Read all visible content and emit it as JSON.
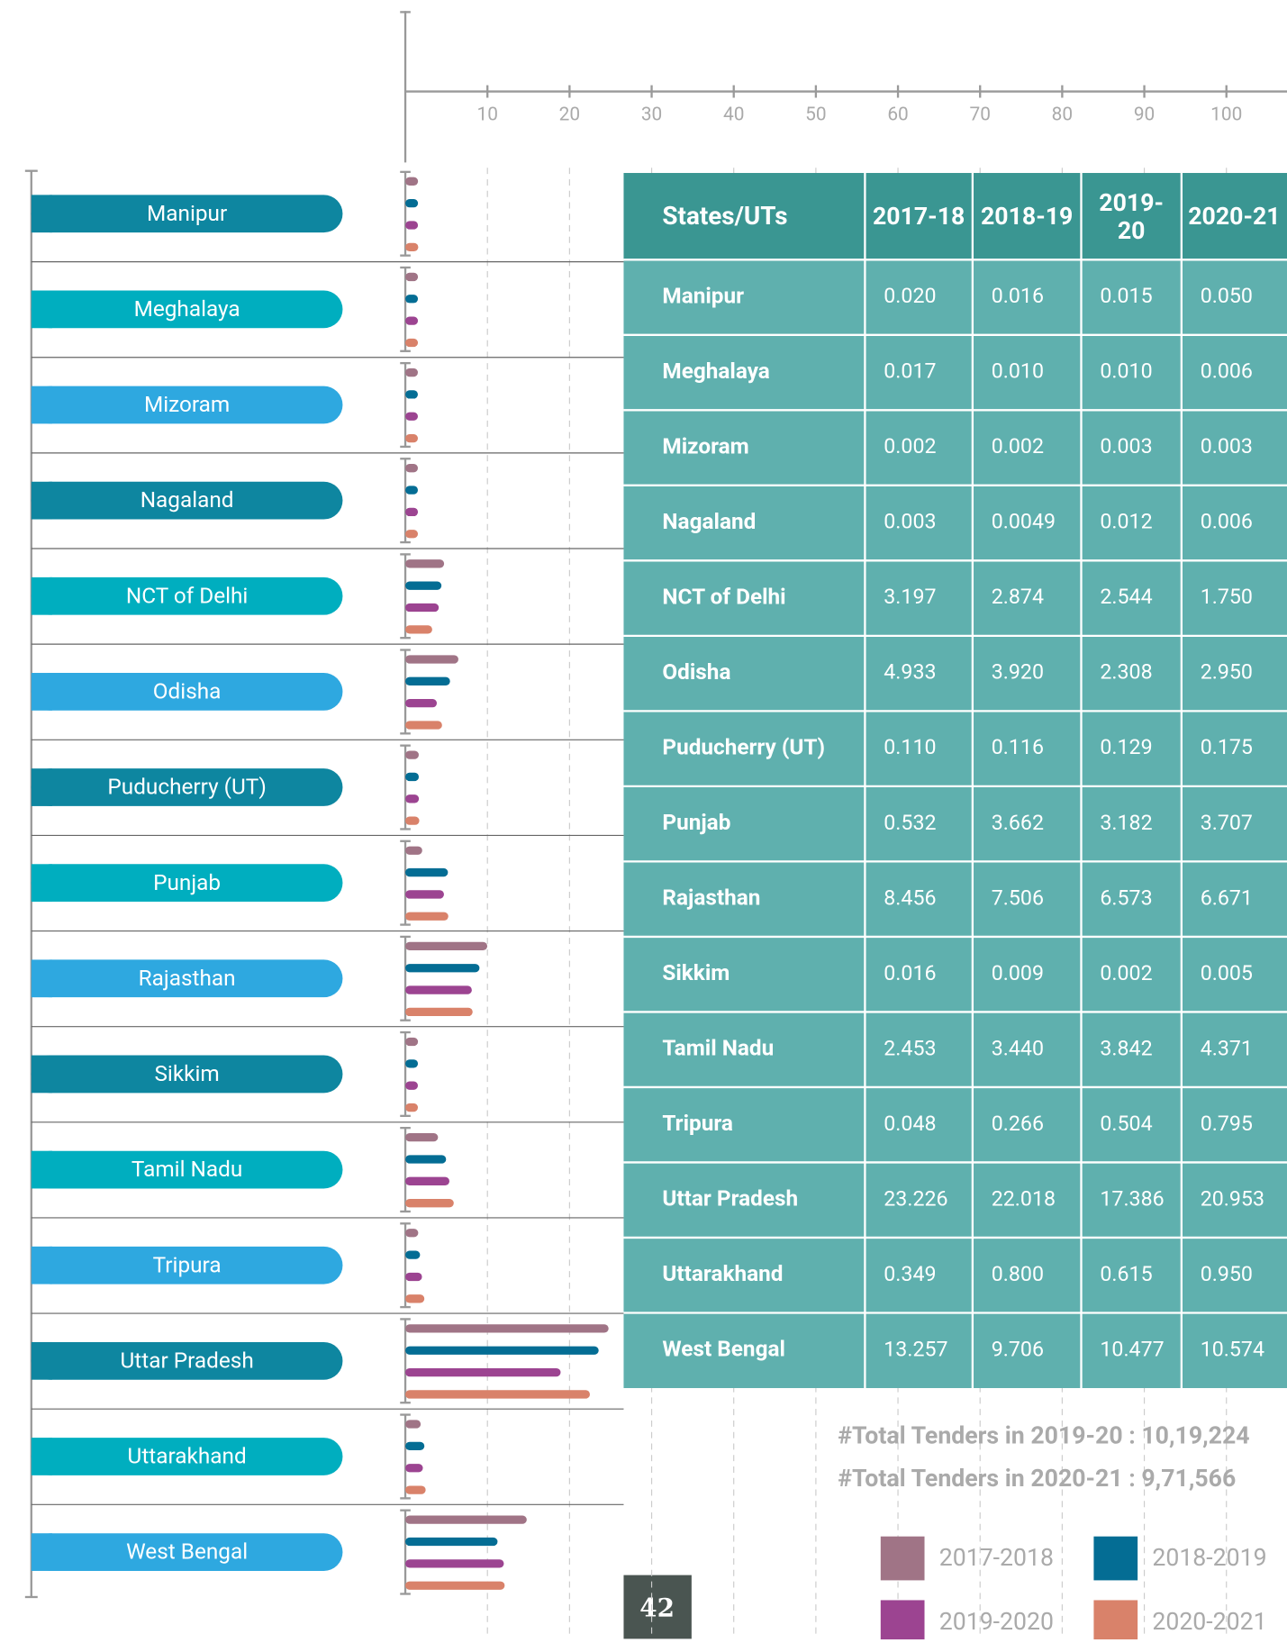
{
  "chart_data": {
    "type": "bar",
    "orientation": "horizontal",
    "categories": [
      "Manipur",
      "Meghalaya",
      "Mizoram",
      "Nagaland",
      "NCT of Delhi",
      "Odisha",
      "Puducherry (UT)",
      "Punjab",
      "Rajasthan",
      "Sikkim",
      "Tamil Nadu",
      "Tripura",
      "Uttar Pradesh",
      "Uttarakhand",
      "West Bengal"
    ],
    "series": [
      {
        "name": "2017-2018",
        "color": "#a07486",
        "values": [
          0.02,
          0.017,
          0.002,
          0.003,
          3.197,
          4.933,
          0.11,
          0.532,
          8.456,
          0.016,
          2.453,
          0.048,
          23.226,
          0.349,
          13.257
        ]
      },
      {
        "name": "2018-2019",
        "color": "#046d94",
        "values": [
          0.016,
          0.01,
          0.002,
          0.0049,
          2.874,
          3.92,
          0.116,
          3.662,
          7.506,
          0.009,
          3.44,
          0.266,
          22.018,
          0.8,
          9.706
        ]
      },
      {
        "name": "2019-2020",
        "color": "#9c4491",
        "values": [
          0.015,
          0.01,
          0.003,
          0.012,
          2.544,
          2.308,
          0.129,
          3.182,
          6.573,
          0.002,
          3.842,
          0.504,
          17.386,
          0.615,
          10.477
        ]
      },
      {
        "name": "2020-2021",
        "color": "#d9826a",
        "values": [
          0.05,
          0.006,
          0.003,
          0.006,
          1.75,
          2.95,
          0.175,
          3.707,
          6.671,
          0.005,
          4.371,
          0.795,
          20.953,
          0.95,
          10.574
        ]
      }
    ],
    "xlim": [
      0,
      107
    ],
    "xticks": [
      10,
      20,
      30,
      40,
      50,
      60,
      70,
      80,
      90,
      100
    ],
    "grid": true
  },
  "table": {
    "header": [
      "States/UTs",
      "2017-18",
      "2018-19",
      "2019-20",
      "2020-21"
    ],
    "rows": [
      [
        "Manipur",
        "0.020",
        "0.016",
        "0.015",
        "0.050"
      ],
      [
        "Meghalaya",
        "0.017",
        "0.010",
        "0.010",
        "0.006"
      ],
      [
        "Mizoram",
        "0.002",
        "0.002",
        "0.003",
        "0.003"
      ],
      [
        "Nagaland",
        "0.003",
        "0.0049",
        "0.012",
        "0.006"
      ],
      [
        "NCT of Delhi",
        "3.197",
        "2.874",
        "2.544",
        "1.750"
      ],
      [
        "Odisha",
        "4.933",
        "3.920",
        "2.308",
        "2.950"
      ],
      [
        "Puducherry (UT)",
        "0.110",
        "0.116",
        "0.129",
        "0.175"
      ],
      [
        "Punjab",
        "0.532",
        "3.662",
        "3.182",
        "3.707"
      ],
      [
        "Rajasthan",
        "8.456",
        "7.506",
        "6.573",
        "6.671"
      ],
      [
        "Sikkim",
        "0.016",
        "0.009",
        "0.002",
        "0.005"
      ],
      [
        "Tamil Nadu",
        "2.453",
        "3.440",
        "3.842",
        "4.371"
      ],
      [
        "Tripura",
        "0.048",
        "0.266",
        "0.504",
        "0.795"
      ],
      [
        "Uttar Pradesh",
        "23.226",
        "22.018",
        "17.386",
        "20.953"
      ],
      [
        "Uttarakhand",
        "0.349",
        "0.800",
        "0.615",
        "0.950"
      ],
      [
        "West Bengal",
        "13.257",
        "9.706",
        "10.477",
        "10.574"
      ]
    ]
  },
  "notes": [
    "#Total Tenders in 2019-20 : 10,19,224",
    "#Total Tenders in 2020-21 : 9,71,566"
  ],
  "page_number": "42"
}
